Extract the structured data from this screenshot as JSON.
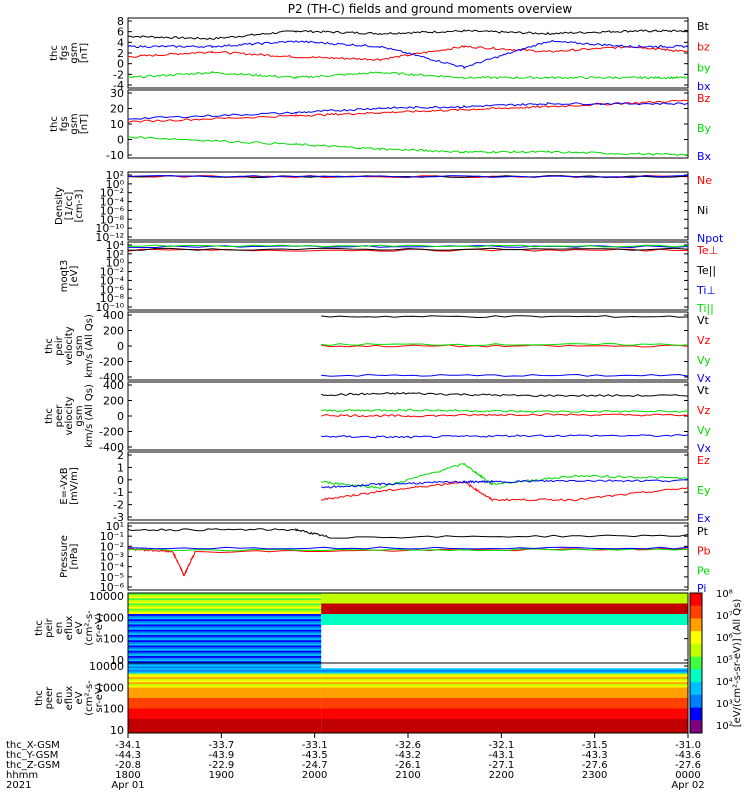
{
  "title": "P2 (TH-C) fields and ground moments overview",
  "chart_data": [
    {
      "type": "line",
      "ylabel": [
        "thc",
        "fgs",
        "gsm",
        "[nT]"
      ],
      "yticks": [
        "8",
        "6",
        "4",
        "2",
        "0",
        "-2",
        "-4"
      ],
      "ylim": [
        -5,
        8.5
      ],
      "series": [
        {
          "name": "Bt",
          "color": "#000000",
          "x": [
            0,
            0.15,
            0.3,
            0.45,
            0.6,
            0.75,
            0.9,
            1.0
          ],
          "y": [
            5,
            4.5,
            6,
            5.5,
            6,
            5.5,
            6,
            6
          ]
        },
        {
          "name": "bz",
          "color": "#ff0000",
          "x": [
            0,
            0.15,
            0.3,
            0.45,
            0.6,
            0.75,
            0.9,
            1.0
          ],
          "y": [
            1,
            2,
            1,
            0.5,
            3,
            2,
            3,
            2
          ]
        },
        {
          "name": "by",
          "color": "#00dd00",
          "x": [
            0,
            0.15,
            0.3,
            0.45,
            0.6,
            0.75,
            0.9,
            1.0
          ],
          "y": [
            -3,
            -2,
            -3,
            -2,
            -3,
            -3,
            -3,
            -3
          ]
        },
        {
          "name": "bx",
          "color": "#0000ff",
          "x": [
            0,
            0.15,
            0.3,
            0.45,
            0.6,
            0.75,
            0.9,
            1.0
          ],
          "y": [
            3,
            3,
            4,
            3,
            -1,
            4,
            3,
            3
          ]
        }
      ]
    },
    {
      "type": "line",
      "ylabel": [
        "thc",
        "fgs",
        "gsm",
        "[nT]"
      ],
      "yticks": [
        "30",
        "20",
        "10",
        "0",
        "-10"
      ],
      "ylim": [
        -14,
        31
      ],
      "series": [
        {
          "name": "Bz",
          "color": "#ff0000",
          "x": [
            0,
            0.3,
            0.45,
            0.6,
            0.75,
            1.0
          ],
          "y": [
            10,
            14,
            16,
            18,
            20,
            24
          ]
        },
        {
          "name": "By",
          "color": "#00dd00",
          "x": [
            0,
            0.3,
            0.45,
            0.6,
            0.75,
            1.0
          ],
          "y": [
            0,
            -5,
            -8,
            -10,
            -10,
            -12
          ]
        },
        {
          "name": "Bx",
          "color": "#0000ff",
          "x": [
            0,
            0.3,
            0.45,
            0.6,
            0.75,
            1.0
          ],
          "y": [
            12,
            16,
            19,
            20,
            22,
            22
          ]
        }
      ]
    },
    {
      "type": "line",
      "ylabel": [
        "Density",
        "[1/cc]",
        "[cm-3]"
      ],
      "yticks": [
        "10²",
        "10⁰",
        "10⁻²",
        "10⁻⁴",
        "10⁻⁶",
        "10⁻⁸",
        "10⁻¹⁰",
        "10⁻¹²"
      ],
      "ylim": [
        -13,
        2
      ],
      "series": [
        {
          "name": "Ne",
          "color": "#ff0000",
          "x": [
            0,
            1
          ],
          "y": [
            1,
            1
          ]
        },
        {
          "name": "Ni",
          "color": "#000000",
          "x": [
            0,
            1
          ],
          "y": [
            1,
            1
          ]
        },
        {
          "name": "Npot",
          "color": "#0000ff",
          "x": [
            0,
            1
          ],
          "y": [
            1,
            1
          ]
        }
      ]
    },
    {
      "type": "line",
      "ylabel": [
        "moqt3",
        "[eV]"
      ],
      "yticks": [
        "10⁴",
        "10²",
        "10⁰",
        "10⁻²",
        "10⁻⁴",
        "10⁻⁶",
        "10⁻⁸",
        "10⁻¹⁰"
      ],
      "ylim": [
        -11,
        4
      ],
      "series": [
        {
          "name": "Te⊥",
          "color": "#ff0000",
          "x": [
            0,
            1
          ],
          "y": [
            2.2,
            2.2
          ]
        },
        {
          "name": "Te||",
          "color": "#000000",
          "x": [
            0,
            1
          ],
          "y": [
            2.4,
            2.4
          ]
        },
        {
          "name": "Ti⊥",
          "color": "#0000ff",
          "x": [
            0,
            1
          ],
          "y": [
            3,
            3
          ]
        },
        {
          "name": "Ti||",
          "color": "#00dd00",
          "x": [
            0,
            1
          ],
          "y": [
            3.1,
            3.1
          ]
        }
      ]
    },
    {
      "type": "line",
      "ylabel": [
        "thc",
        "peir",
        "velocity",
        "gsm",
        "km/s (All Qs)"
      ],
      "yticks": [
        "400",
        "200",
        "0",
        "-200",
        "-400"
      ],
      "ylim": [
        -450,
        450
      ],
      "series": [
        {
          "name": "Vt",
          "color": "#000000",
          "x": [
            0.345,
            1.0
          ],
          "y": [
            390,
            390
          ]
        },
        {
          "name": "Vz",
          "color": "#ff0000",
          "x": [
            0.345,
            1.0
          ],
          "y": [
            0,
            0
          ]
        },
        {
          "name": "Vy",
          "color": "#00dd00",
          "x": [
            0.345,
            1.0
          ],
          "y": [
            20,
            20
          ]
        },
        {
          "name": "Vx",
          "color": "#0000ff",
          "x": [
            0.345,
            1.0
          ],
          "y": [
            -390,
            -390
          ]
        }
      ]
    },
    {
      "type": "line",
      "ylabel": [
        "thc",
        "peer",
        "velocity",
        "gsm",
        "km/s (All Qs)"
      ],
      "yticks": [
        "400",
        "200",
        "0",
        "-200",
        "-400"
      ],
      "ylim": [
        -450,
        450
      ],
      "series": [
        {
          "name": "Vt",
          "color": "#000000",
          "x": [
            0.345,
            0.5,
            0.7,
            1.0
          ],
          "y": [
            280,
            300,
            270,
            270
          ]
        },
        {
          "name": "Vz",
          "color": "#ff0000",
          "x": [
            0.345,
            0.5,
            0.7,
            1.0
          ],
          "y": [
            10,
            0,
            20,
            10
          ]
        },
        {
          "name": "Vy",
          "color": "#00dd00",
          "x": [
            0.345,
            0.5,
            0.7,
            1.0
          ],
          "y": [
            70,
            80,
            60,
            60
          ]
        },
        {
          "name": "Vx",
          "color": "#0000ff",
          "x": [
            0.345,
            0.5,
            0.7,
            1.0
          ],
          "y": [
            -270,
            -280,
            -260,
            -260
          ]
        }
      ]
    },
    {
      "type": "line",
      "ylabel": [
        "E=-VxB",
        "[mV/m]"
      ],
      "yticks": [
        "2",
        "1",
        "0",
        "-1",
        "-2",
        "-3"
      ],
      "ylim": [
        -3.2,
        2.5
      ],
      "series": [
        {
          "name": "Ez",
          "color": "#ff0000",
          "x": [
            0.345,
            0.45,
            0.6,
            0.65,
            0.8,
            1.0
          ],
          "y": [
            -1.5,
            -0.8,
            0,
            -1.5,
            -1.5,
            -0.5
          ]
        },
        {
          "name": "Ey",
          "color": "#00dd00",
          "x": [
            0.345,
            0.45,
            0.6,
            0.65,
            0.8,
            1.0
          ],
          "y": [
            0,
            -0.5,
            1.5,
            -0.2,
            0.5,
            0.3
          ]
        },
        {
          "name": "Ex",
          "color": "#0000ff",
          "x": [
            0.345,
            0.45,
            0.6,
            0.65,
            0.8,
            1.0
          ],
          "y": [
            -0.5,
            -0.2,
            0,
            0,
            0.1,
            0.1
          ]
        }
      ]
    },
    {
      "type": "line",
      "ylabel": [
        "Pressure",
        "[nPa]"
      ],
      "yticks": [
        "10¹",
        "10⁻¹",
        "10⁻²",
        "10⁻³",
        "10⁻⁴",
        "10⁻⁵",
        "10⁻⁶"
      ],
      "ylim": [
        -6,
        1
      ],
      "series": [
        {
          "name": "Pt",
          "color": "#000000",
          "x": [
            0,
            0.3,
            0.36,
            1.0
          ],
          "y": [
            0.3,
            0.3,
            -0.5,
            -0.3
          ]
        },
        {
          "name": "Pb",
          "color": "#ff0000",
          "x": [
            0,
            0.08,
            0.1,
            0.12,
            1.0
          ],
          "y": [
            -1.7,
            -2.0,
            -4.5,
            -2.0,
            -1.7
          ]
        },
        {
          "name": "Pe",
          "color": "#00dd00",
          "x": [
            0,
            1.0
          ],
          "y": [
            -1.8,
            -1.8
          ]
        },
        {
          "name": "Pi",
          "color": "#0000ff",
          "x": [
            0,
            1.0
          ],
          "y": [
            -1.6,
            -1.6
          ]
        }
      ]
    },
    {
      "type": "heatmap",
      "ylabel": [
        "thc",
        "peir",
        "en",
        "eflux",
        "eV",
        "(cm²-s-",
        "sr-eV)"
      ],
      "yticks": [
        "10000",
        "1000",
        "100",
        "10"
      ],
      "colorbar_label": "[eV/(cm²-s-sr-eV)] (All Qs)",
      "colorbar_ticks": [
        "10⁸",
        "10⁷",
        "10⁶",
        "10⁵",
        "10⁴",
        "10³",
        "10²"
      ]
    },
    {
      "type": "heatmap",
      "ylabel": [
        "thc",
        "peer",
        "en",
        "eflux",
        "eV",
        "(cm²-s-",
        "sr-eV)"
      ],
      "yticks": [
        "10000",
        "1000",
        "100",
        "10"
      ],
      "colorbar_label": "[eV/(cm²-s-sr-eV)]",
      "colorbar_ticks": [
        "10⁸",
        "10⁷",
        "10⁶",
        "10⁵",
        "10⁴",
        "10³",
        "10²"
      ]
    }
  ],
  "xaxis": {
    "row_labels": [
      "thc_X-GSM",
      "thc_Y-GSM",
      "thc_Z-GSM",
      "hhmm",
      "2021"
    ],
    "ticks": [
      {
        "x": 0.0,
        "vals": [
          "-34.1",
          "-44.3",
          "-20.8",
          "1800",
          "Apr 01"
        ]
      },
      {
        "x": 0.1667,
        "vals": [
          "-33.7",
          "-43.9",
          "-22.9",
          "1900",
          ""
        ]
      },
      {
        "x": 0.3333,
        "vals": [
          "-33.1",
          "-43.5",
          "-24.7",
          "2000",
          ""
        ]
      },
      {
        "x": 0.5,
        "vals": [
          "-32.6",
          "-43.2",
          "-26.1",
          "2100",
          ""
        ]
      },
      {
        "x": 0.6667,
        "vals": [
          "-32.1",
          "-43.1",
          "-27.1",
          "2200",
          ""
        ]
      },
      {
        "x": 0.8333,
        "vals": [
          "-31.5",
          "-43.3",
          "-27.6",
          "2300",
          ""
        ]
      },
      {
        "x": 1.0,
        "vals": [
          "-31.0",
          "-43.6",
          "-27.6",
          "0000",
          "Apr 02"
        ]
      }
    ]
  }
}
